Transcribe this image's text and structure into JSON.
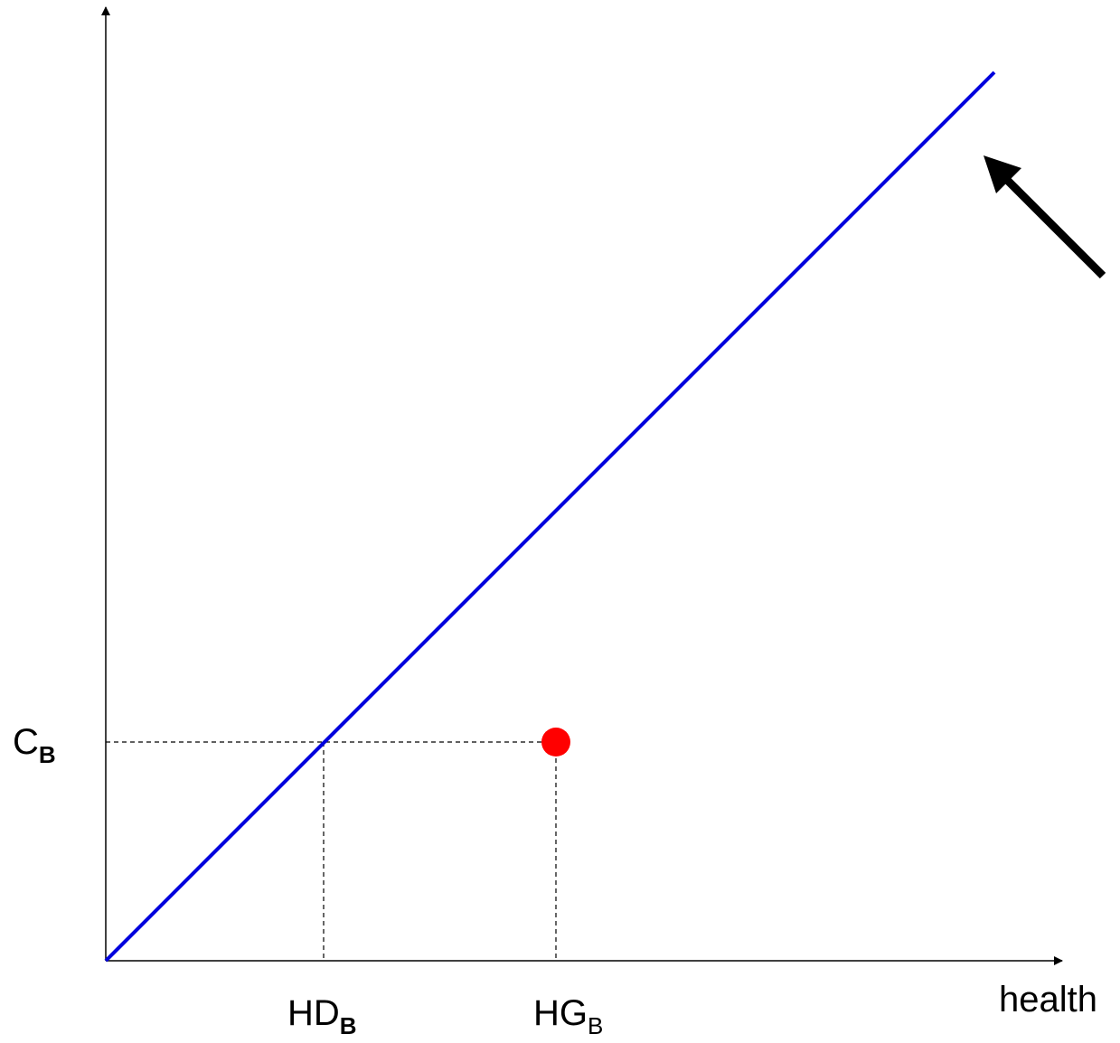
{
  "axes": {
    "x_label": "health"
  },
  "labels": [
    {
      "main": "C",
      "sub": "B"
    },
    {
      "main": "HD",
      "sub": "B"
    },
    {
      "main": "HG",
      "sub": "B"
    }
  ]
}
